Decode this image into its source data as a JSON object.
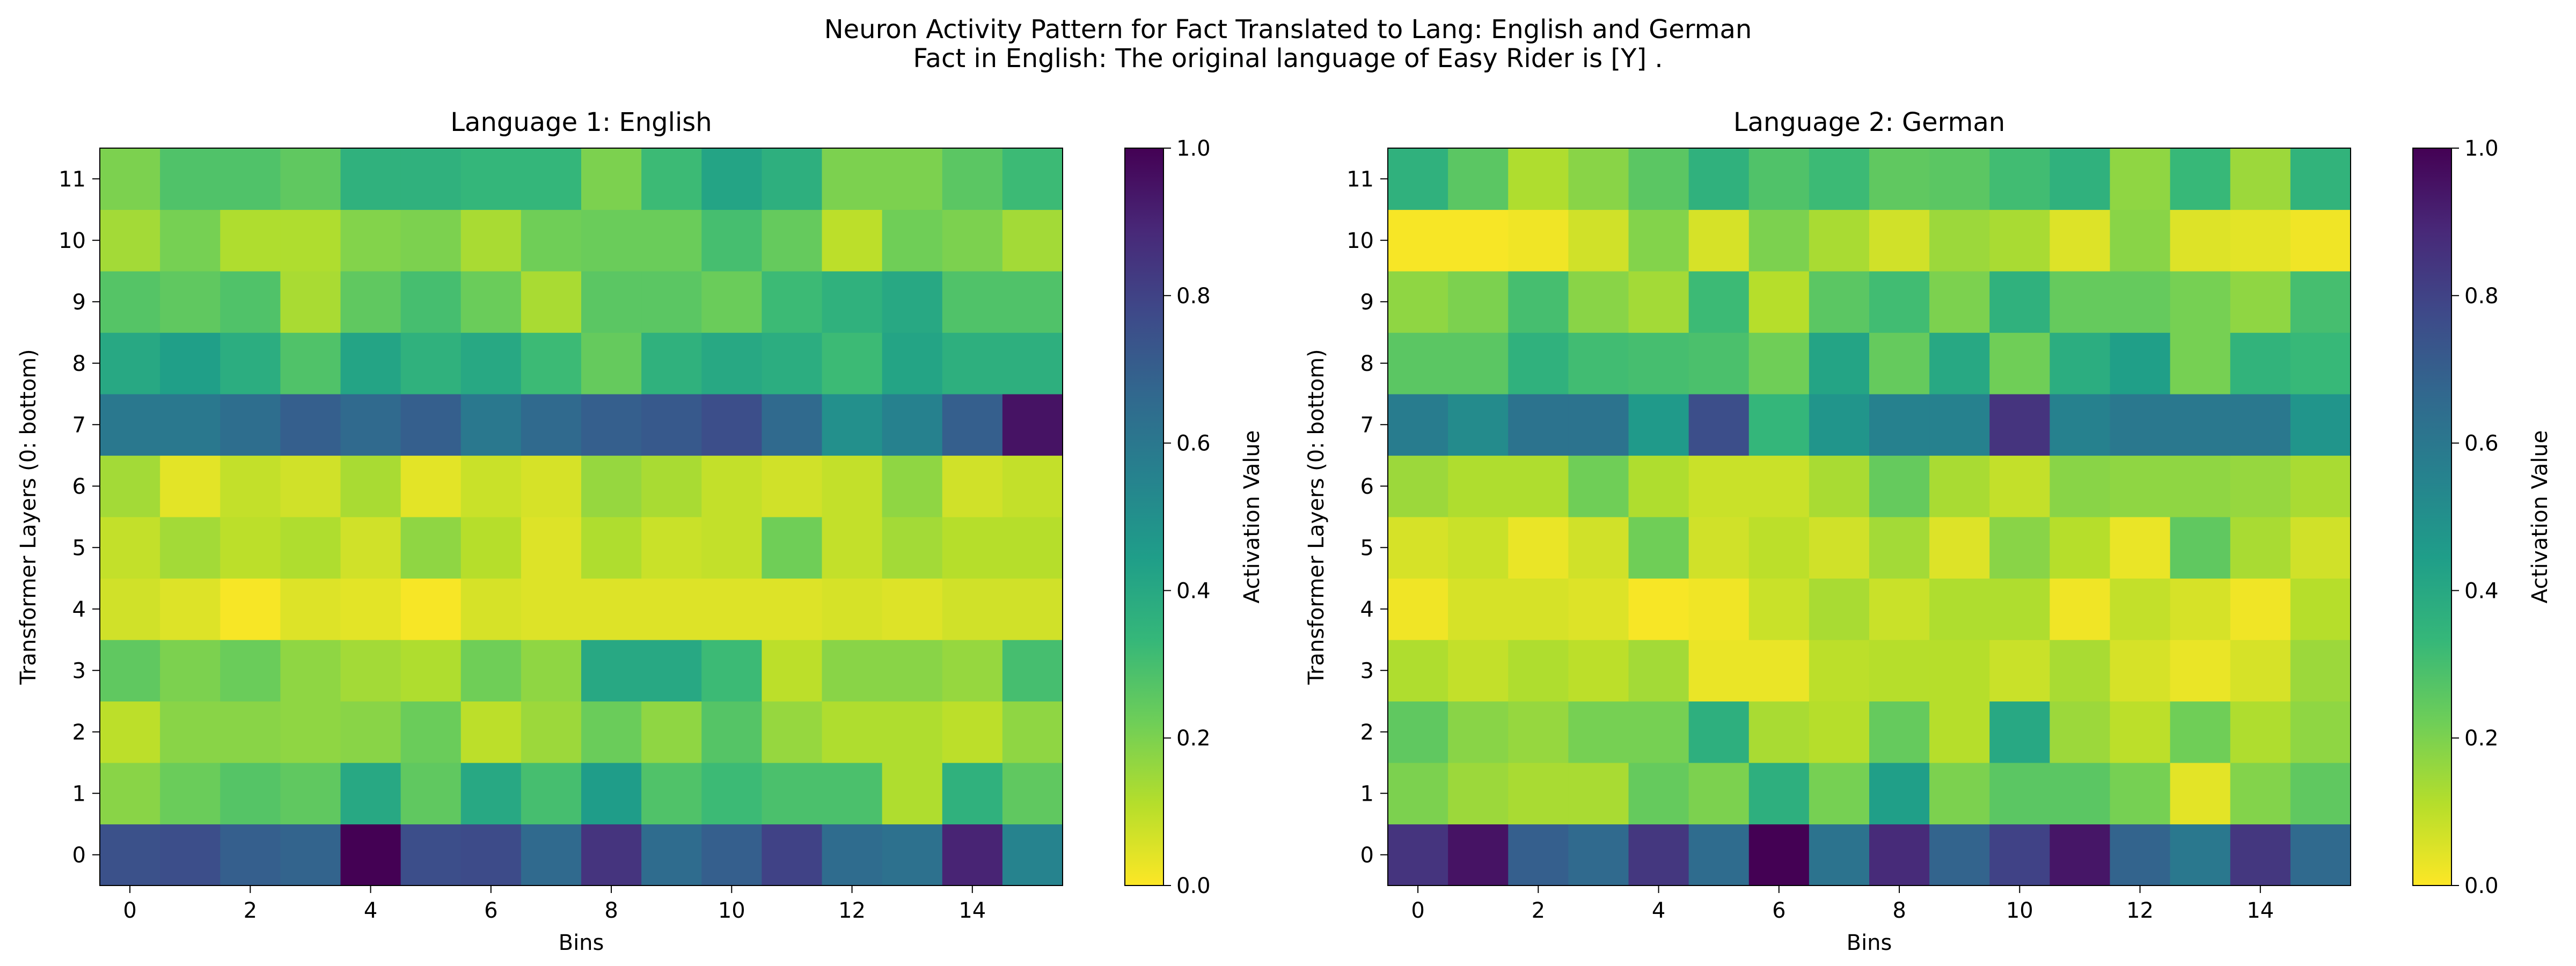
{
  "figure": {
    "title_line1": "Neuron Activity Pattern for Fact Translated to Lang: English and German",
    "title_line2": "Fact in English: The original language of Easy Rider is [Y] ."
  },
  "colormap": {
    "name": "viridis_r",
    "stops": [
      "#fde725",
      "#b5de2b",
      "#6ece58",
      "#35b779",
      "#1f9e89",
      "#26828e",
      "#31688e",
      "#3e4989",
      "#482878",
      "#440154"
    ]
  },
  "chart_data": [
    {
      "type": "heatmap",
      "title": "Language 1: English",
      "xlabel": "Bins",
      "ylabel": "Transformer Layers (0: bottom)",
      "x_ticks": [
        0,
        2,
        4,
        6,
        8,
        10,
        12,
        14
      ],
      "y_ticks": [
        0,
        1,
        2,
        3,
        4,
        5,
        6,
        7,
        8,
        9,
        10,
        11
      ],
      "colorbar_label": "Activation Value",
      "colorbar_ticks": [
        "0.0",
        "0.2",
        "0.4",
        "0.6",
        "0.8",
        "1.0"
      ],
      "value_range": [
        0.0,
        1.0
      ],
      "matrix": [
        [
          0.75,
          0.76,
          0.7,
          0.68,
          1.0,
          0.76,
          0.77,
          0.66,
          0.85,
          0.65,
          0.7,
          0.8,
          0.65,
          0.63,
          0.9,
          0.55
        ],
        [
          0.18,
          0.23,
          0.27,
          0.25,
          0.4,
          0.25,
          0.4,
          0.3,
          0.45,
          0.28,
          0.32,
          0.29,
          0.29,
          0.12,
          0.36,
          0.25
        ],
        [
          0.1,
          0.18,
          0.18,
          0.17,
          0.18,
          0.23,
          0.1,
          0.15,
          0.23,
          0.17,
          0.27,
          0.16,
          0.12,
          0.12,
          0.1,
          0.17
        ],
        [
          0.25,
          0.2,
          0.23,
          0.17,
          0.14,
          0.12,
          0.22,
          0.17,
          0.4,
          0.4,
          0.32,
          0.1,
          0.18,
          0.18,
          0.16,
          0.3
        ],
        [
          0.07,
          0.05,
          0.01,
          0.05,
          0.04,
          0.01,
          0.06,
          0.05,
          0.05,
          0.05,
          0.05,
          0.05,
          0.06,
          0.05,
          0.07,
          0.07
        ],
        [
          0.09,
          0.14,
          0.1,
          0.12,
          0.07,
          0.17,
          0.11,
          0.05,
          0.12,
          0.08,
          0.09,
          0.22,
          0.09,
          0.14,
          0.11,
          0.11
        ],
        [
          0.14,
          0.04,
          0.09,
          0.07,
          0.13,
          0.04,
          0.08,
          0.06,
          0.16,
          0.13,
          0.09,
          0.07,
          0.09,
          0.17,
          0.07,
          0.09
        ],
        [
          0.6,
          0.6,
          0.64,
          0.7,
          0.66,
          0.7,
          0.6,
          0.66,
          0.7,
          0.72,
          0.76,
          0.66,
          0.5,
          0.56,
          0.7,
          0.95
        ],
        [
          0.4,
          0.44,
          0.38,
          0.28,
          0.42,
          0.36,
          0.4,
          0.32,
          0.24,
          0.36,
          0.4,
          0.38,
          0.32,
          0.42,
          0.37,
          0.37
        ],
        [
          0.27,
          0.25,
          0.28,
          0.13,
          0.25,
          0.3,
          0.23,
          0.13,
          0.26,
          0.26,
          0.23,
          0.32,
          0.36,
          0.4,
          0.28,
          0.28
        ],
        [
          0.14,
          0.21,
          0.12,
          0.12,
          0.19,
          0.2,
          0.13,
          0.22,
          0.23,
          0.23,
          0.3,
          0.24,
          0.1,
          0.22,
          0.2,
          0.14
        ],
        [
          0.2,
          0.28,
          0.28,
          0.25,
          0.36,
          0.36,
          0.34,
          0.34,
          0.2,
          0.32,
          0.42,
          0.37,
          0.2,
          0.2,
          0.26,
          0.32
        ]
      ]
    },
    {
      "type": "heatmap",
      "title": "Language 2: German",
      "xlabel": "Bins",
      "ylabel": "Transformer Layers (0: bottom)",
      "x_ticks": [
        0,
        2,
        4,
        6,
        8,
        10,
        12,
        14
      ],
      "y_ticks": [
        0,
        1,
        2,
        3,
        4,
        5,
        6,
        7,
        8,
        9,
        10,
        11
      ],
      "colorbar_label": "Activation Value",
      "colorbar_ticks": [
        "0.0",
        "0.2",
        "0.4",
        "0.6",
        "0.8",
        "1.0"
      ],
      "value_range": [
        0.0,
        1.0
      ],
      "matrix": [
        [
          0.85,
          0.95,
          0.7,
          0.66,
          0.84,
          0.65,
          1.0,
          0.62,
          0.88,
          0.68,
          0.8,
          0.94,
          0.68,
          0.6,
          0.84,
          0.66
        ],
        [
          0.2,
          0.15,
          0.13,
          0.13,
          0.24,
          0.2,
          0.37,
          0.21,
          0.44,
          0.2,
          0.26,
          0.26,
          0.21,
          0.04,
          0.19,
          0.25
        ],
        [
          0.25,
          0.18,
          0.16,
          0.21,
          0.21,
          0.37,
          0.13,
          0.11,
          0.24,
          0.11,
          0.4,
          0.15,
          0.1,
          0.22,
          0.12,
          0.17
        ],
        [
          0.12,
          0.09,
          0.12,
          0.1,
          0.14,
          0.03,
          0.03,
          0.1,
          0.11,
          0.11,
          0.08,
          0.13,
          0.06,
          0.03,
          0.06,
          0.15
        ],
        [
          0.02,
          0.06,
          0.06,
          0.05,
          0.01,
          0.02,
          0.08,
          0.13,
          0.08,
          0.12,
          0.12,
          0.02,
          0.09,
          0.06,
          0.02,
          0.11
        ],
        [
          0.06,
          0.08,
          0.03,
          0.07,
          0.22,
          0.07,
          0.1,
          0.07,
          0.14,
          0.05,
          0.18,
          0.11,
          0.03,
          0.25,
          0.13,
          0.07
        ],
        [
          0.15,
          0.12,
          0.12,
          0.22,
          0.12,
          0.08,
          0.08,
          0.13,
          0.24,
          0.13,
          0.09,
          0.18,
          0.17,
          0.17,
          0.16,
          0.13
        ],
        [
          0.58,
          0.52,
          0.62,
          0.62,
          0.46,
          0.76,
          0.34,
          0.48,
          0.56,
          0.56,
          0.85,
          0.56,
          0.6,
          0.6,
          0.6,
          0.48
        ],
        [
          0.26,
          0.26,
          0.36,
          0.31,
          0.3,
          0.29,
          0.22,
          0.42,
          0.24,
          0.4,
          0.22,
          0.38,
          0.44,
          0.21,
          0.35,
          0.33
        ],
        [
          0.17,
          0.2,
          0.3,
          0.18,
          0.14,
          0.32,
          0.11,
          0.26,
          0.31,
          0.2,
          0.36,
          0.24,
          0.24,
          0.21,
          0.17,
          0.3
        ],
        [
          0.01,
          0.01,
          0.02,
          0.07,
          0.19,
          0.06,
          0.2,
          0.13,
          0.07,
          0.15,
          0.13,
          0.05,
          0.18,
          0.05,
          0.04,
          0.02
        ],
        [
          0.36,
          0.26,
          0.12,
          0.18,
          0.26,
          0.36,
          0.28,
          0.32,
          0.25,
          0.26,
          0.31,
          0.36,
          0.17,
          0.33,
          0.15,
          0.35
        ]
      ]
    }
  ]
}
